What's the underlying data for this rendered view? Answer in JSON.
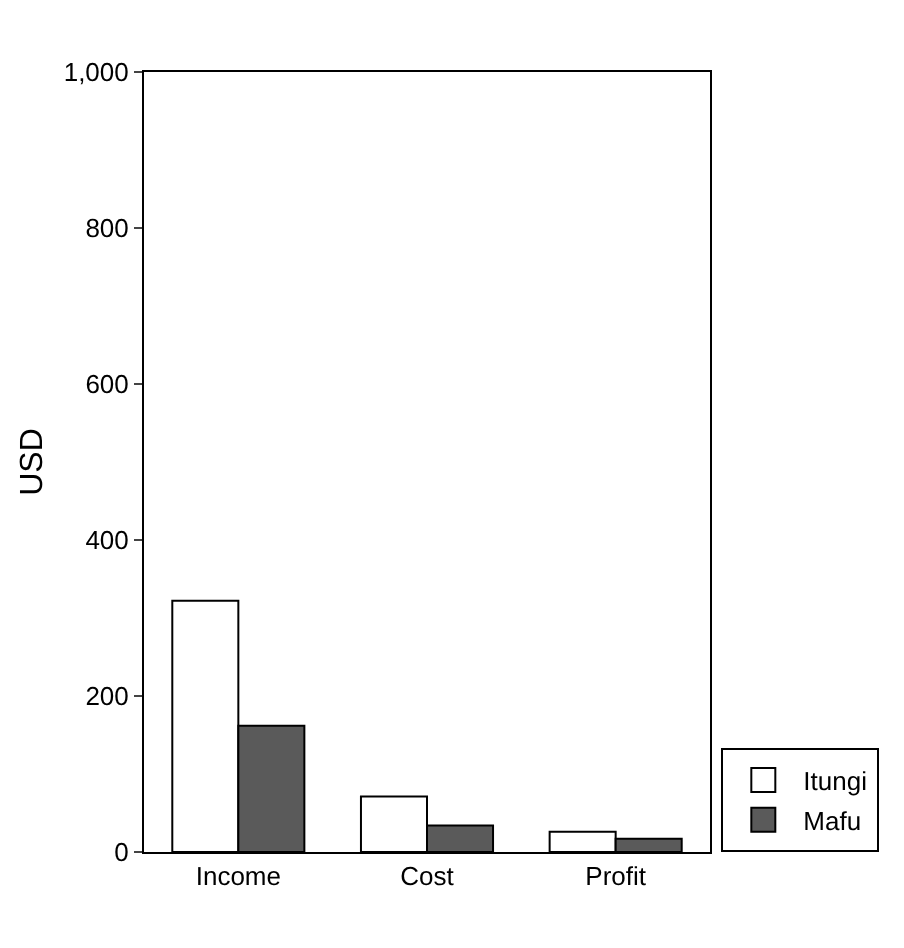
{
  "chart_data": {
    "type": "bar",
    "ylabel": "USD",
    "categories": [
      "Income",
      "Cost",
      "Profit"
    ],
    "series": [
      {
        "name": "Itungi",
        "color": "#ffffff",
        "values": [
          322,
          71,
          26
        ]
      },
      {
        "name": "Mafu",
        "color": "#5a5a5a",
        "values": [
          162,
          34,
          17
        ]
      }
    ],
    "ylim": [
      0,
      1000
    ],
    "yticks": [
      0,
      200,
      400,
      600,
      800,
      {
        "value": 1000,
        "label": "1,000"
      }
    ],
    "grid": false,
    "legend": "bottom right"
  }
}
